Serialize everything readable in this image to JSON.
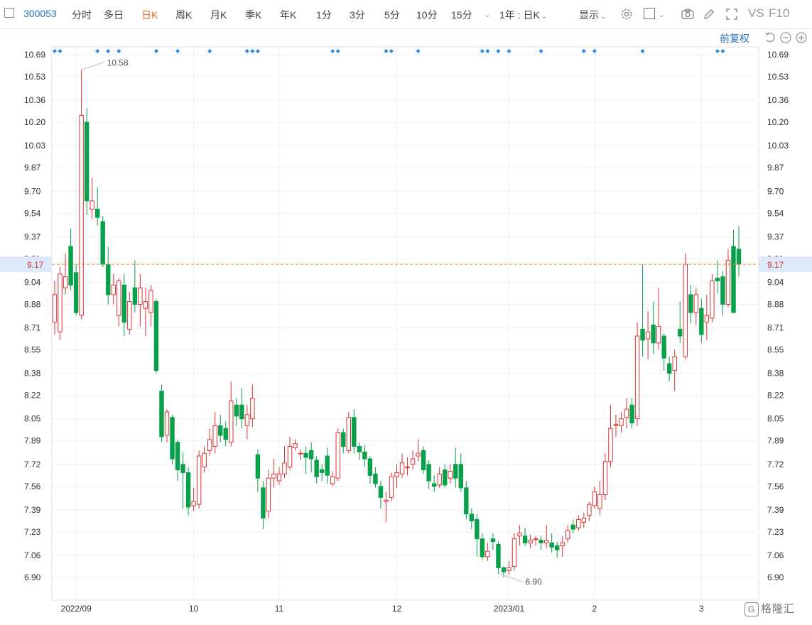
{
  "toolbar": {
    "code": "300053",
    "tabs": [
      "分时",
      "多日",
      "日K",
      "周K",
      "月K",
      "季K",
      "年K",
      "1分",
      "3分",
      "5分",
      "10分",
      "15分"
    ],
    "active_tab": "日K",
    "range_select": "1年 : 日K",
    "display_menu": "显示",
    "vs_label": "VS",
    "f10_label": "F10"
  },
  "adjust_label": "前复权",
  "logo_text": "格隆汇",
  "colors": {
    "up": "#e03030",
    "down": "#08a04a",
    "current_line": "#f07f1a",
    "current_bg": "#dbe9f8",
    "dividend": "#2a8be0"
  },
  "chart_data": {
    "type": "candlestick",
    "y_ticks": [
      10.69,
      10.53,
      10.36,
      10.2,
      10.03,
      9.87,
      9.7,
      9.54,
      9.37,
      9.21,
      9.04,
      8.88,
      8.71,
      8.55,
      8.38,
      8.22,
      8.05,
      7.89,
      7.72,
      7.56,
      7.39,
      7.23,
      7.06,
      6.9
    ],
    "ylim": [
      6.9,
      10.69
    ],
    "x_labels": [
      {
        "index": 4,
        "label": "2022/09"
      },
      {
        "index": 26,
        "label": "10"
      },
      {
        "index": 42,
        "label": "11"
      },
      {
        "index": 64,
        "label": "12"
      },
      {
        "index": 85,
        "label": "2023/01"
      },
      {
        "index": 101,
        "label": "2"
      },
      {
        "index": 121,
        "label": "3"
      }
    ],
    "current_price": 9.17,
    "max_label": "10.58",
    "min_label": "6.90",
    "max_index": 5,
    "min_index": 83,
    "dividend_marker_indices": [
      0,
      1,
      8,
      10,
      12,
      19,
      23,
      29,
      36,
      37,
      38,
      52,
      53,
      62,
      63,
      68,
      80,
      81,
      83,
      85,
      91,
      99,
      101,
      110,
      124,
      125
    ],
    "candles": [
      [
        8.75,
        8.95,
        9.05,
        8.66
      ],
      [
        8.68,
        9.1,
        9.15,
        8.62
      ],
      [
        9.0,
        9.08,
        9.25,
        8.95
      ],
      [
        9.3,
        9.02,
        9.43,
        8.98
      ],
      [
        9.11,
        8.82,
        9.17,
        8.8
      ],
      [
        8.8,
        10.25,
        10.58,
        8.77
      ],
      [
        10.2,
        9.63,
        10.3,
        9.53
      ],
      [
        9.57,
        9.63,
        9.8,
        9.5
      ],
      [
        9.57,
        9.51,
        9.73,
        9.45
      ],
      [
        9.48,
        9.17,
        9.52,
        9.15
      ],
      [
        9.17,
        8.95,
        9.3,
        8.88
      ],
      [
        8.95,
        9.02,
        9.1,
        8.88
      ],
      [
        8.8,
        9.05,
        9.07,
        8.72
      ],
      [
        9.02,
        8.75,
        9.1,
        8.65
      ],
      [
        8.7,
        8.9,
        8.97,
        8.66
      ],
      [
        9.0,
        8.88,
        9.2,
        8.82
      ],
      [
        8.88,
        9.0,
        9.1,
        8.72
      ],
      [
        8.85,
        8.9,
        9.0,
        8.65
      ],
      [
        8.82,
        8.98,
        9.02,
        8.72
      ],
      [
        8.9,
        8.4,
        8.92,
        8.38
      ],
      [
        8.25,
        7.92,
        8.3,
        7.88
      ],
      [
        7.93,
        8.1,
        8.12,
        7.88
      ],
      [
        8.06,
        7.76,
        8.08,
        7.72
      ],
      [
        7.88,
        7.68,
        7.9,
        7.6
      ],
      [
        7.72,
        7.66,
        7.81,
        7.4
      ],
      [
        7.66,
        7.41,
        7.7,
        7.35
      ],
      [
        7.42,
        7.45,
        7.55,
        7.38
      ],
      [
        7.43,
        7.78,
        7.82,
        7.4
      ],
      [
        7.7,
        7.8,
        7.85,
        7.66
      ],
      [
        7.82,
        7.9,
        7.98,
        7.78
      ],
      [
        7.85,
        8.0,
        8.1,
        7.8
      ],
      [
        8.0,
        7.93,
        8.08,
        7.88
      ],
      [
        7.98,
        7.9,
        8.03,
        7.85
      ],
      [
        7.88,
        8.18,
        8.32,
        7.85
      ],
      [
        8.15,
        8.07,
        8.2,
        8.0
      ],
      [
        8.15,
        8.05,
        8.27,
        7.98
      ],
      [
        8.0,
        8.08,
        8.15,
        7.9
      ],
      [
        8.05,
        8.2,
        8.3,
        7.99
      ],
      [
        7.79,
        7.62,
        7.83,
        7.52
      ],
      [
        7.55,
        7.33,
        7.6,
        7.25
      ],
      [
        7.38,
        7.62,
        7.68,
        7.33
      ],
      [
        7.62,
        7.65,
        7.76,
        7.55
      ],
      [
        7.6,
        7.65,
        7.7,
        7.57
      ],
      [
        7.65,
        7.73,
        7.85,
        7.62
      ],
      [
        7.7,
        7.85,
        7.92,
        7.68
      ],
      [
        7.84,
        7.87,
        7.9,
        7.82
      ],
      [
        7.8,
        7.8,
        7.83,
        7.75
      ],
      [
        7.8,
        7.77,
        7.85,
        7.65
      ],
      [
        7.82,
        7.76,
        7.88,
        7.66
      ],
      [
        7.75,
        7.63,
        7.78,
        7.58
      ],
      [
        7.68,
        7.66,
        7.72,
        7.6
      ],
      [
        7.78,
        7.64,
        7.84,
        7.58
      ],
      [
        7.58,
        7.63,
        7.67,
        7.56
      ],
      [
        7.62,
        7.95,
        7.98,
        7.6
      ],
      [
        7.95,
        7.85,
        7.98,
        7.8
      ],
      [
        7.82,
        8.06,
        8.1,
        7.8
      ],
      [
        8.06,
        7.85,
        8.12,
        7.8
      ],
      [
        7.85,
        7.81,
        7.88,
        7.75
      ],
      [
        7.81,
        7.76,
        7.86,
        7.7
      ],
      [
        7.76,
        7.64,
        7.78,
        7.58
      ],
      [
        7.65,
        7.58,
        7.7,
        7.55
      ],
      [
        7.56,
        7.48,
        7.6,
        7.4
      ],
      [
        7.45,
        7.46,
        7.52,
        7.3
      ],
      [
        7.48,
        7.63,
        7.66,
        7.45
      ],
      [
        7.63,
        7.66,
        7.72,
        7.55
      ],
      [
        7.65,
        7.73,
        7.8,
        7.62
      ],
      [
        7.7,
        7.7,
        7.77,
        7.64
      ],
      [
        7.72,
        7.76,
        7.82,
        7.68
      ],
      [
        7.78,
        7.8,
        7.9,
        7.74
      ],
      [
        7.82,
        7.68,
        7.85,
        7.65
      ],
      [
        7.72,
        7.6,
        7.75,
        7.54
      ],
      [
        7.58,
        7.56,
        7.64,
        7.52
      ],
      [
        7.57,
        7.65,
        7.7,
        7.55
      ],
      [
        7.68,
        7.57,
        7.72,
        7.55
      ],
      [
        7.62,
        7.67,
        7.72,
        7.58
      ],
      [
        7.72,
        7.62,
        7.84,
        7.55
      ],
      [
        7.72,
        7.55,
        7.8,
        7.52
      ],
      [
        7.55,
        7.36,
        7.6,
        7.32
      ],
      [
        7.36,
        7.31,
        7.4,
        7.25
      ],
      [
        7.32,
        7.18,
        7.36,
        7.05
      ],
      [
        7.18,
        7.05,
        7.22,
        7.03
      ],
      [
        7.05,
        7.09,
        7.15,
        7.02
      ],
      [
        7.18,
        7.16,
        7.22,
        7.1
      ],
      [
        7.14,
        6.97,
        7.16,
        6.93
      ],
      [
        6.97,
        6.94,
        6.98,
        6.9
      ],
      [
        6.95,
        6.97,
        7.02,
        6.92
      ],
      [
        6.98,
        7.18,
        7.22,
        6.95
      ],
      [
        7.2,
        7.22,
        7.28,
        7.13
      ],
      [
        7.2,
        7.15,
        7.26,
        7.13
      ],
      [
        7.15,
        7.17,
        7.21,
        7.11
      ],
      [
        7.18,
        7.18,
        7.2,
        7.13
      ],
      [
        7.17,
        7.15,
        7.2,
        7.1
      ],
      [
        7.15,
        7.17,
        7.28,
        7.11
      ],
      [
        7.15,
        7.12,
        7.22,
        7.08
      ],
      [
        7.13,
        7.1,
        7.16,
        7.04
      ],
      [
        7.13,
        7.15,
        7.2,
        7.05
      ],
      [
        7.18,
        7.24,
        7.28,
        7.15
      ],
      [
        7.28,
        7.25,
        7.32,
        7.22
      ],
      [
        7.26,
        7.32,
        7.35,
        7.24
      ],
      [
        7.3,
        7.33,
        7.37,
        7.26
      ],
      [
        7.35,
        7.43,
        7.45,
        7.31
      ],
      [
        7.42,
        7.52,
        7.56,
        7.4
      ],
      [
        7.4,
        7.5,
        7.6,
        7.35
      ],
      [
        7.5,
        7.74,
        7.8,
        7.46
      ],
      [
        7.74,
        7.98,
        8.15,
        7.7
      ],
      [
        8.0,
        8.01,
        8.08,
        7.92
      ],
      [
        8.0,
        8.05,
        8.1,
        7.95
      ],
      [
        8.06,
        8.12,
        8.2,
        7.98
      ],
      [
        8.15,
        8.02,
        8.2,
        7.98
      ],
      [
        8.05,
        8.65,
        8.75,
        8.0
      ],
      [
        8.7,
        8.62,
        9.17,
        8.5
      ],
      [
        8.63,
        8.68,
        8.83,
        8.48
      ],
      [
        8.73,
        8.6,
        8.9,
        8.52
      ],
      [
        8.6,
        8.72,
        9.0,
        8.55
      ],
      [
        8.65,
        8.49,
        8.67,
        8.4
      ],
      [
        8.45,
        8.38,
        8.5,
        8.32
      ],
      [
        8.4,
        8.5,
        8.55,
        8.25
      ],
      [
        8.7,
        8.65,
        8.9,
        8.6
      ],
      [
        8.5,
        9.17,
        9.25,
        8.48
      ],
      [
        8.95,
        8.82,
        9.02,
        8.74
      ],
      [
        8.82,
        8.95,
        9.0,
        8.73
      ],
      [
        8.85,
        8.66,
        8.92,
        8.6
      ],
      [
        8.75,
        8.8,
        8.95,
        8.62
      ],
      [
        8.78,
        9.05,
        9.1,
        8.75
      ],
      [
        9.07,
        9.05,
        9.2,
        8.96
      ],
      [
        9.08,
        8.88,
        9.12,
        8.8
      ],
      [
        8.88,
        9.2,
        9.28,
        8.86
      ],
      [
        9.3,
        8.82,
        9.42,
        8.82
      ],
      [
        9.28,
        9.17,
        9.45,
        9.08
      ]
    ]
  }
}
